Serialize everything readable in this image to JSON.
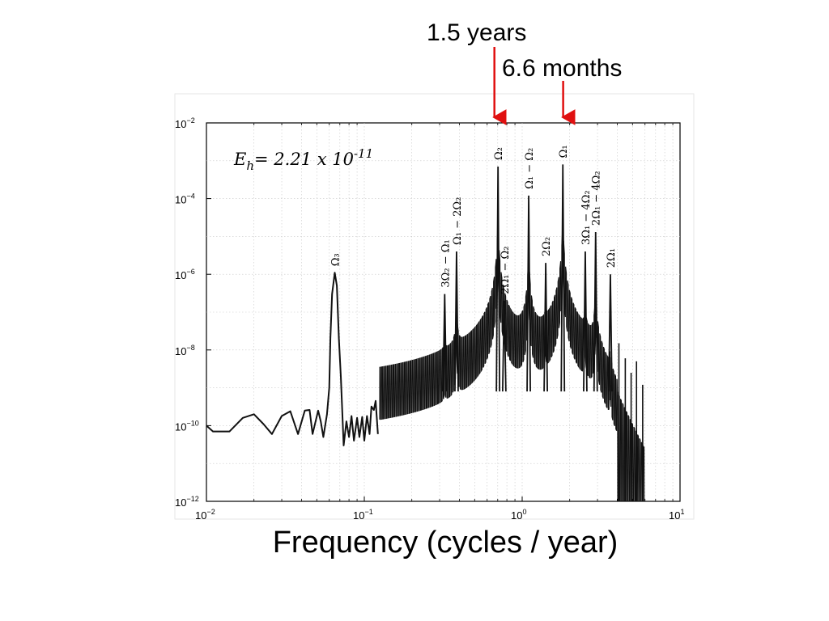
{
  "annotations": {
    "period_1": "1.5 years",
    "period_2": "6.6 months",
    "arrow_color": "#e01010",
    "arrow_1_x": 0.667,
    "arrow_2_x": 1.818
  },
  "equation": {
    "symbol": "E",
    "subscript": "h",
    "rest": "= 2.21 x 10",
    "exponent": "-11"
  },
  "xlabel": "Frequency  (cycles / year)",
  "chart_data": {
    "type": "line",
    "xscale": "log",
    "yscale": "log",
    "xlim": [
      0.01,
      10
    ],
    "ylim": [
      1e-12,
      0.01
    ],
    "grid": true,
    "line_color": "#111111",
    "x_tick_labels": [
      {
        "base": "10",
        "exp": "−2",
        "value": 0.01
      },
      {
        "base": "10",
        "exp": "−1",
        "value": 0.1
      },
      {
        "base": "10",
        "exp": "0",
        "value": 1
      },
      {
        "base": "10",
        "exp": "1",
        "value": 10
      }
    ],
    "y_tick_labels": [
      {
        "base": "10",
        "exp": "−2",
        "value": 0.01
      },
      {
        "base": "10",
        "exp": "−4",
        "value": 0.0001
      },
      {
        "base": "10",
        "exp": "−6",
        "value": 1e-06
      },
      {
        "base": "10",
        "exp": "−8",
        "value": 1e-08
      },
      {
        "base": "10",
        "exp": "−10",
        "value": 1e-10
      },
      {
        "base": "10",
        "exp": "−12",
        "value": 1e-12
      }
    ],
    "low_band": [
      [
        0.01,
        1e-10
      ],
      [
        0.011,
        7e-11
      ],
      [
        0.014,
        7e-11
      ],
      [
        0.017,
        1.6e-10
      ],
      [
        0.02,
        2e-10
      ],
      [
        0.023,
        1.1e-10
      ],
      [
        0.026,
        6e-11
      ],
      [
        0.03,
        1.8e-10
      ],
      [
        0.034,
        2.4e-10
      ],
      [
        0.038,
        6e-11
      ],
      [
        0.042,
        2.5e-10
      ],
      [
        0.045,
        2.6e-10
      ],
      [
        0.047,
        6e-11
      ],
      [
        0.051,
        2.5e-10
      ],
      [
        0.053,
        1.3e-10
      ],
      [
        0.055,
        5e-11
      ],
      [
        0.058,
        2e-10
      ],
      [
        0.06,
        1e-09
      ],
      [
        0.061,
        2e-08
      ],
      [
        0.0625,
        3e-07
      ],
      [
        0.065,
        1.1e-06
      ],
      [
        0.067,
        5e-07
      ],
      [
        0.069,
        2e-08
      ],
      [
        0.071,
        2e-09
      ],
      [
        0.074,
        3e-11
      ],
      [
        0.077,
        1.3e-10
      ],
      [
        0.08,
        5e-11
      ],
      [
        0.083,
        1.8e-10
      ],
      [
        0.086,
        4e-11
      ],
      [
        0.09,
        1.6e-10
      ],
      [
        0.093,
        5e-11
      ],
      [
        0.097,
        1.7e-10
      ],
      [
        0.1,
        4e-11
      ],
      [
        0.104,
        1.8e-10
      ],
      [
        0.108,
        6e-11
      ],
      [
        0.111,
        3.2e-10
      ],
      [
        0.115,
        2.6e-10
      ],
      [
        0.118,
        4.5e-10
      ],
      [
        0.122,
        6e-11
      ]
    ],
    "background": {
      "x_start": 0.125,
      "x_end": 6.0,
      "n_osc": 130
    },
    "peaks": [
      {
        "label": "3Ω₂ − Ω₁",
        "x": 0.323,
        "y": 3e-07
      },
      {
        "label": "Ω₁ − 2Ω₂",
        "x": 0.384,
        "y": 4e-06
      },
      {
        "label": "Ω₂",
        "x": 0.703,
        "y": 0.0007
      },
      {
        "label": "2Ω₁ − Ω₂",
        "x": 0.77,
        "y": 2e-07
      },
      {
        "label": "Ω₁ − Ω₂",
        "x": 1.1,
        "y": 0.00012
      },
      {
        "label": "2Ω₂",
        "x": 1.41,
        "y": 2e-06
      },
      {
        "label": "Ω₁",
        "x": 1.81,
        "y": 0.0008
      },
      {
        "label": "3Ω₁ − 4Ω₂",
        "x": 2.51,
        "y": 4e-06
      },
      {
        "label": "2Ω₁ − 4Ω₂",
        "x": 2.92,
        "y": 1.3e-05
      },
      {
        "label": "2Ω₁",
        "x": 3.62,
        "y": 1e-06
      },
      {
        "label": "Ω₃",
        "x": 0.065,
        "y": 1.1e-06
      }
    ]
  }
}
